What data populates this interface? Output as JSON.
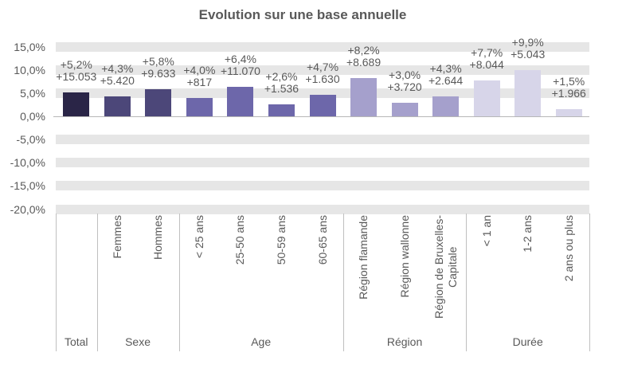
{
  "title": "Evolution sur une base annuelle",
  "chart_data": {
    "type": "bar",
    "title": "Evolution sur une base annuelle",
    "ylabel": "",
    "xlabel": "",
    "ylim": [
      -20,
      15
    ],
    "grid": "horizontal-bands-every-5pct",
    "legend": "none",
    "y_axis": {
      "tick_values": [
        15,
        10,
        5,
        0,
        -5,
        -10,
        -15,
        -20
      ],
      "tick_labels": [
        "15,0%",
        "10,0%",
        "5,0%",
        "0,0%",
        "-5,0%",
        "-10,0%",
        "-15,0%",
        "-20,0%"
      ]
    },
    "value_unit": "percent",
    "groups": [
      {
        "label": "Total",
        "color": "#2a2547",
        "bars": [
          {
            "category": "",
            "pct": 5.2,
            "count": 15053,
            "pct_label": "+5,2%",
            "count_label": "+15.053"
          }
        ]
      },
      {
        "label": "Sexe",
        "color": "#4c4779",
        "bars": [
          {
            "category": "Femmes",
            "pct": 4.3,
            "count": 5420,
            "pct_label": "+4,3%",
            "count_label": "+5.420"
          },
          {
            "category": "Hommes",
            "pct": 5.8,
            "count": 9633,
            "pct_label": "+5,8%",
            "count_label": "+9.633"
          }
        ]
      },
      {
        "label": "Age",
        "color": "#6d67aa",
        "bars": [
          {
            "category": "< 25 ans",
            "pct": 4.0,
            "count": 817,
            "pct_label": "+4,0%",
            "count_label": "+817"
          },
          {
            "category": "25-50 ans",
            "pct": 6.4,
            "count": 11070,
            "pct_label": "+6,4%",
            "count_label": "+11.070"
          },
          {
            "category": "50-59 ans",
            "pct": 2.6,
            "count": 1536,
            "pct_label": "+2,6%",
            "count_label": "+1.536"
          },
          {
            "category": "60-65 ans",
            "pct": 4.7,
            "count": 1630,
            "pct_label": "+4,7%",
            "count_label": "+1.630"
          }
        ]
      },
      {
        "label": "Région",
        "color": "#a5a0cc",
        "bars": [
          {
            "category": "Région flamande",
            "pct": 8.2,
            "count": 8689,
            "pct_label": "+8,2%",
            "count_label": "+8.689"
          },
          {
            "category": "Région wallonne",
            "pct": 3.0,
            "count": 3720,
            "pct_label": "+3,0%",
            "count_label": "+3.720"
          },
          {
            "category": "Région de Bruxelles-\nCapitale",
            "pct": 4.3,
            "count": 2644,
            "pct_label": "+4,3%",
            "count_label": "+2.644"
          }
        ]
      },
      {
        "label": "Durée",
        "color": "#d7d5e9",
        "bars": [
          {
            "category": "< 1 an",
            "pct": 7.7,
            "count": 8044,
            "pct_label": "+7,7%",
            "count_label": "+8.044"
          },
          {
            "category": "1-2 ans",
            "pct": 9.9,
            "count": 5043,
            "pct_label": "+9,9%",
            "count_label": "+5.043"
          },
          {
            "category": "2 ans ou plus",
            "pct": 1.5,
            "count": 1966,
            "pct_label": "+1,5%",
            "count_label": "+1.966"
          }
        ]
      }
    ]
  }
}
